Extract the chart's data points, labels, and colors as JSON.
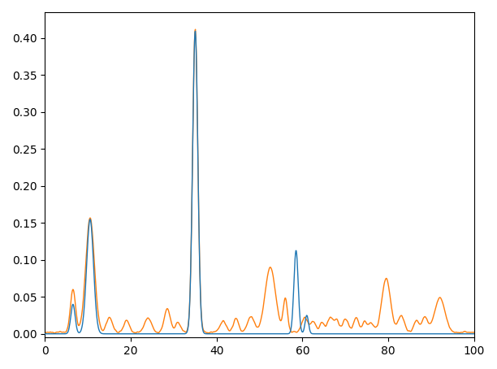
{
  "title": "",
  "xlabel": "",
  "ylabel": "",
  "xlim": [
    0,
    100
  ],
  "ylim": [
    -0.005,
    0.435
  ],
  "color_orange": "#ff7f0e",
  "color_blue": "#1f77b4",
  "figsize": [
    6.12,
    4.54
  ],
  "dpi": 100,
  "xticks": [
    0,
    20,
    40,
    60,
    80,
    100
  ],
  "yticks": [
    0.0,
    0.05,
    0.1,
    0.15,
    0.2,
    0.25,
    0.3,
    0.35,
    0.4
  ]
}
